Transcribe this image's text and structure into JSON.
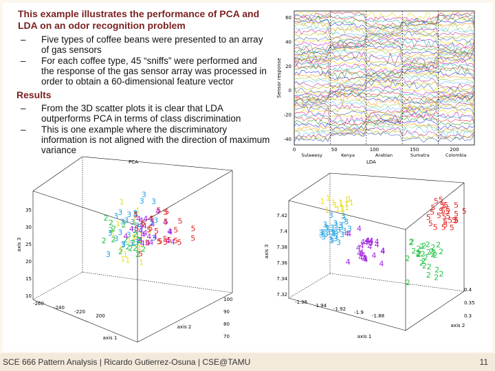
{
  "slide": {
    "title": "This example illustrates the performance of PCA and LDA on an odor recognition problem",
    "bullets": [
      "Five types of coffee beans were presented to an array of gas sensors",
      "For each coffee type, 45 “sniffs” were performed and the response of the gas sensor array was processed in order to obtain a 60-dimensional feature vector"
    ],
    "results_heading": "Results",
    "results_bullets": [
      "From the 3D scatter plots it is clear that LDA outperforms PCA in terms of class discrimination",
      "This is one example where the discriminatory information is not aligned with the direction of maximum variance"
    ],
    "bullet_dash": "–"
  },
  "footer": {
    "left": "SCE 666 Pattern Analysis | Ricardo Gutierrez-Osuna | CSE@TAMU",
    "page": "11"
  },
  "chart_data": [
    {
      "type": "line",
      "ylabel": "Sensor response",
      "ylim": [
        -45,
        65
      ],
      "xlim": [
        0,
        225
      ],
      "yticks": [
        "60",
        "40",
        "20",
        "0",
        "-20",
        "-40"
      ],
      "xticks": [
        "0",
        "50",
        "100",
        "150",
        "200"
      ],
      "groups": [
        "Sulawesy",
        "Kenya",
        "Arabian",
        "Sumatra",
        "Colombia"
      ],
      "series_count": 60
    },
    {
      "type": "scatter",
      "title": "PCA",
      "axis1_label": "axis 1",
      "axis2_label": "axis 2",
      "axis3_label": "axis 3",
      "axis3_ticks": [
        "35",
        "30",
        "25",
        "20",
        "15",
        "10"
      ],
      "axis1_ticks": [
        "-260",
        "-240",
        "-220",
        "200"
      ],
      "axis2_ticks": [
        "100",
        "90",
        "80",
        "70"
      ],
      "classes": [
        "1",
        "2",
        "3",
        "4",
        "5"
      ],
      "class_colors": [
        "#e8e020",
        "#20c040",
        "#20a0e0",
        "#a020e0",
        "#e02020"
      ]
    },
    {
      "type": "scatter",
      "title": "LDA",
      "axis1_label": "axis 1",
      "axis2_label": "axis 2",
      "axis3_label": "axis 3",
      "axis3_ticks": [
        "7.42",
        "7.4",
        "7.38",
        "7.36",
        "7.34",
        "7.32"
      ],
      "axis1_ticks": [
        "-1.96",
        "-1.94",
        "-1.92",
        "-1.9",
        "-1.88"
      ],
      "axis2_ticks": [
        "0.4",
        "0.35",
        "0.3"
      ],
      "classes": [
        "1",
        "2",
        "3",
        "4",
        "5"
      ],
      "class_colors": [
        "#e8e020",
        "#20c040",
        "#20a0e0",
        "#a020e0",
        "#e02020"
      ]
    }
  ]
}
